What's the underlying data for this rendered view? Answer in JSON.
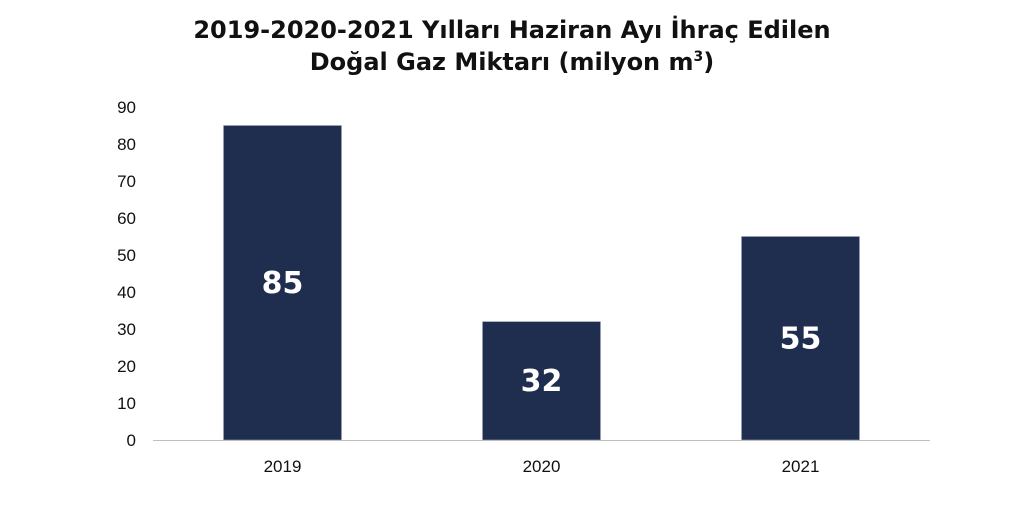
{
  "chart_data": {
    "type": "bar",
    "title": {
      "line1": "2019-2020-2021 Yılları Haziran Ayı İhraç Edilen",
      "line2_main": "Doğal Gaz Miktarı (milyon m",
      "line2_sup": "3",
      "line2_close": ")"
    },
    "categories": [
      "2019",
      "2020",
      "2021"
    ],
    "values": [
      85,
      32,
      55
    ],
    "data_labels": [
      "85",
      "32",
      "55"
    ],
    "ylim": [
      0,
      90
    ],
    "yticks": [
      "0",
      "10",
      "20",
      "30",
      "40",
      "50",
      "60",
      "70",
      "80",
      "90"
    ],
    "xlabel": "",
    "ylabel": "",
    "grid": false,
    "legend": "none",
    "colors": {
      "bar": "#1f2d4f",
      "axis": "#bfbfbf"
    }
  }
}
